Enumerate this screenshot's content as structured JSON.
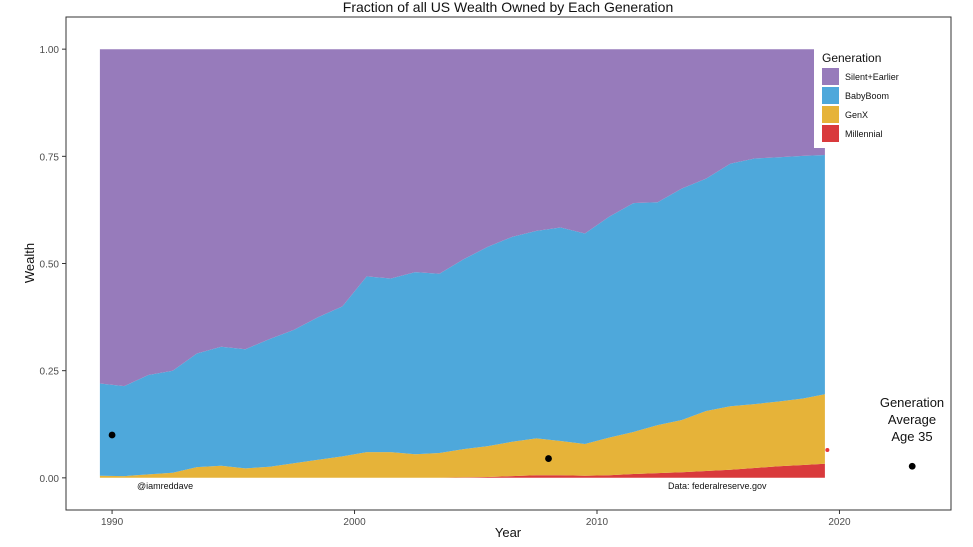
{
  "chart_data": {
    "type": "area",
    "stacked": true,
    "title": "Fraction of all US Wealth Owned by Each Generation",
    "xlabel": "Year",
    "ylabel": "Wealth",
    "xlim": [
      1988.1,
      2024.6
    ],
    "ylim": [
      -0.075,
      1.075
    ],
    "xticks": [
      1990,
      2000,
      2010,
      2020
    ],
    "yticks": [
      "0.00",
      "0.25",
      "0.50",
      "0.75",
      "1.00"
    ],
    "legend": {
      "title": "Generation",
      "placement": "top-right",
      "entries": [
        "Silent+Earlier",
        "BabyBoom",
        "GenX",
        "Millennial"
      ]
    },
    "colors": {
      "Silent+Earlier": "#977bbb",
      "BabyBoom": "#4ea8db",
      "GenX": "#e6b339",
      "Millennial": "#d93a3c"
    },
    "years": [
      1989.5,
      1990.5,
      1991.5,
      1992.5,
      1993.5,
      1994.5,
      1995.5,
      1996.5,
      1997.5,
      1998.5,
      1999.5,
      2000.5,
      2001.5,
      2002.5,
      2003.5,
      2004.5,
      2005.5,
      2006.5,
      2007.5,
      2008.5,
      2009.5,
      2010.5,
      2011.5,
      2012.5,
      2013.5,
      2014.5,
      2015.5,
      2016.5,
      2017.5,
      2018.5,
      2019.4
    ],
    "series": [
      {
        "name": "Millennial",
        "values": [
          0,
          0,
          0,
          0,
          0,
          0,
          0,
          0,
          0,
          0,
          0,
          0,
          0,
          0,
          0,
          0.001,
          0.002,
          0.004,
          0.006,
          0.006,
          0.005,
          0.006,
          0.009,
          0.011,
          0.013,
          0.016,
          0.019,
          0.023,
          0.027,
          0.03,
          0.033
        ]
      },
      {
        "name": "GenX",
        "values": [
          0.005,
          0.004,
          0.008,
          0.012,
          0.025,
          0.028,
          0.022,
          0.026,
          0.034,
          0.042,
          0.05,
          0.06,
          0.06,
          0.055,
          0.058,
          0.066,
          0.072,
          0.08,
          0.086,
          0.08,
          0.074,
          0.088,
          0.098,
          0.112,
          0.122,
          0.14,
          0.148,
          0.149,
          0.151,
          0.155,
          0.162
        ]
      },
      {
        "name": "BabyBoom",
        "values": [
          0.215,
          0.21,
          0.232,
          0.238,
          0.265,
          0.278,
          0.278,
          0.298,
          0.311,
          0.333,
          0.35,
          0.41,
          0.405,
          0.425,
          0.418,
          0.443,
          0.465,
          0.478,
          0.484,
          0.498,
          0.491,
          0.515,
          0.534,
          0.52,
          0.54,
          0.542,
          0.566,
          0.573,
          0.57,
          0.566,
          0.558
        ]
      },
      {
        "name": "Silent+Earlier",
        "values": [
          0.78,
          0.786,
          0.76,
          0.75,
          0.71,
          0.694,
          0.7,
          0.676,
          0.655,
          0.625,
          0.6,
          0.53,
          0.535,
          0.52,
          0.524,
          0.49,
          0.461,
          0.438,
          0.424,
          0.416,
          0.43,
          0.391,
          0.359,
          0.357,
          0.325,
          0.302,
          0.267,
          0.255,
          0.252,
          0.249,
          0.247
        ]
      }
    ],
    "points": [
      {
        "x": 1990.0,
        "y": 0.1,
        "color": "#000000"
      },
      {
        "x": 2008.0,
        "y": 0.045,
        "color": "#000000"
      },
      {
        "x": 2019.5,
        "y": 0.065,
        "color": "#e8363a"
      },
      {
        "x": 2023.0,
        "y": 0.027,
        "color": "#000000"
      }
    ],
    "annotations": {
      "credit": "@iamreddave",
      "source": "Data: federalreserve.gov",
      "side_label": [
        "Generation",
        "Average",
        "Age 35"
      ]
    }
  }
}
